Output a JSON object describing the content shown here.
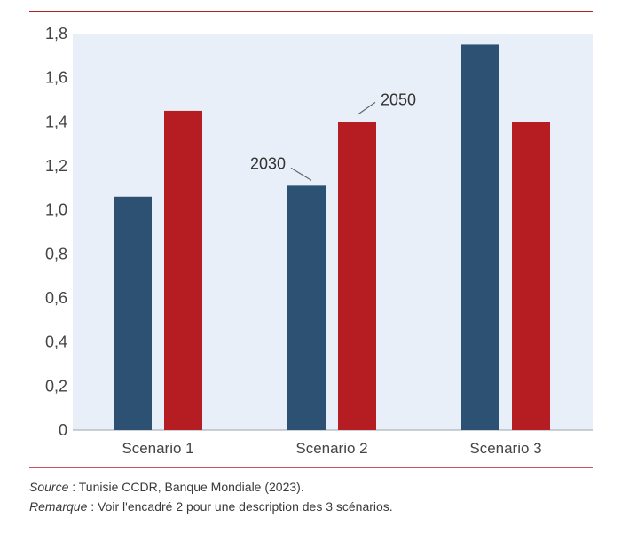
{
  "chart_data": {
    "type": "bar",
    "categories": [
      "Scenario 1",
      "Scenario 2",
      "Scenario 3"
    ],
    "series": [
      {
        "name": "2030",
        "values": [
          1.06,
          1.11,
          1.75
        ]
      },
      {
        "name": "2050",
        "values": [
          1.45,
          1.4,
          1.4
        ]
      }
    ],
    "ylim": [
      0,
      1.8
    ],
    "yticks": [
      "0",
      "0,2",
      "0,4",
      "0,6",
      "0,8",
      "1,0",
      "1,2",
      "1,4",
      "1,6",
      "1,8"
    ],
    "yticks_values": [
      0,
      0.2,
      0.4,
      0.6,
      0.8,
      1.0,
      1.2,
      1.4,
      1.6,
      1.8
    ],
    "grid": false,
    "colors": {
      "2030": "#2d5172",
      "2050": "#b51d23",
      "plot_background": "#e9eff8",
      "top_rule": "#b51d23"
    }
  },
  "notes": {
    "source_label": "Source",
    "source_text": " : Tunisie CCDR, Banque Mondiale (2023).",
    "remark_label": "Remarque",
    "remark_text": " : Voir l'encadré 2 pour une description des 3 scénarios."
  }
}
